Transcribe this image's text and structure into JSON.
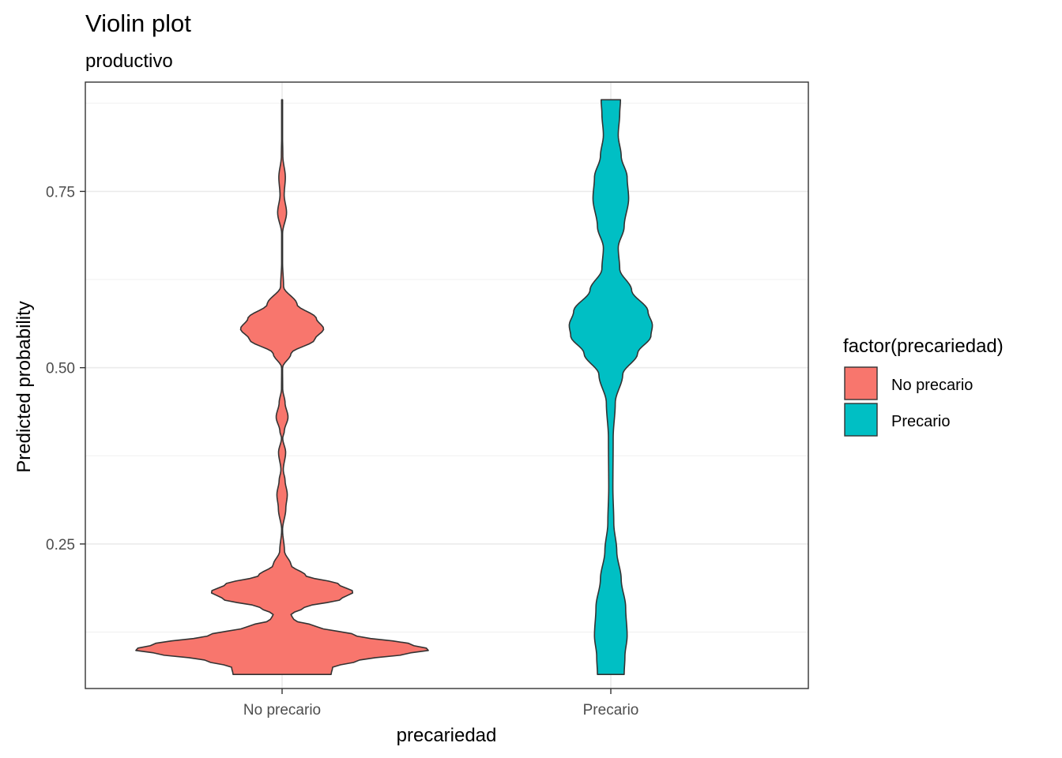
{
  "chart_data": {
    "type": "violin",
    "title": "Violin plot",
    "subtitle": "productivo",
    "xlabel": "precariedad",
    "ylabel": "Predicted probability",
    "categories": [
      "No precario",
      "Precario"
    ],
    "ylim": [
      0.045,
      0.905
    ],
    "yticks": [
      0.25,
      0.5,
      0.75
    ],
    "ytick_labels": [
      "0.25",
      "0.50",
      "0.75"
    ],
    "minor_yticks": [
      0.125,
      0.375,
      0.625,
      0.875
    ],
    "grid": true,
    "legend": {
      "title": "factor(precariedad)",
      "position": "right",
      "entries": [
        {
          "label": "No precario",
          "color": "#F8766D"
        },
        {
          "label": "Precario",
          "color": "#00BFC4"
        }
      ]
    },
    "series": [
      {
        "name": "No precario",
        "color": "#F8766D",
        "y_range": [
          0.065,
          0.88
        ],
        "density_profile": [
          {
            "y": 0.065,
            "w": 0.33
          },
          {
            "y": 0.075,
            "w": 0.34
          },
          {
            "y": 0.085,
            "w": 0.52
          },
          {
            "y": 0.095,
            "w": 0.86
          },
          {
            "y": 0.1,
            "w": 1.0
          },
          {
            "y": 0.108,
            "w": 0.86
          },
          {
            "y": 0.12,
            "w": 0.5
          },
          {
            "y": 0.133,
            "w": 0.23
          },
          {
            "y": 0.142,
            "w": 0.08
          },
          {
            "y": 0.15,
            "w": 0.06
          },
          {
            "y": 0.16,
            "w": 0.15
          },
          {
            "y": 0.172,
            "w": 0.4
          },
          {
            "y": 0.182,
            "w": 0.48
          },
          {
            "y": 0.193,
            "w": 0.38
          },
          {
            "y": 0.205,
            "w": 0.16
          },
          {
            "y": 0.22,
            "w": 0.06
          },
          {
            "y": 0.24,
            "w": 0.016
          },
          {
            "y": 0.27,
            "w": 0.003
          },
          {
            "y": 0.3,
            "w": 0.025
          },
          {
            "y": 0.32,
            "w": 0.035
          },
          {
            "y": 0.34,
            "w": 0.02
          },
          {
            "y": 0.355,
            "w": 0.008
          },
          {
            "y": 0.38,
            "w": 0.024
          },
          {
            "y": 0.4,
            "w": 0.004
          },
          {
            "y": 0.41,
            "w": 0.015
          },
          {
            "y": 0.43,
            "w": 0.04
          },
          {
            "y": 0.45,
            "w": 0.02
          },
          {
            "y": 0.47,
            "w": 0.004
          },
          {
            "y": 0.5,
            "w": 0.003
          },
          {
            "y": 0.52,
            "w": 0.06
          },
          {
            "y": 0.54,
            "w": 0.22
          },
          {
            "y": 0.555,
            "w": 0.28
          },
          {
            "y": 0.57,
            "w": 0.23
          },
          {
            "y": 0.59,
            "w": 0.1
          },
          {
            "y": 0.615,
            "w": 0.01
          },
          {
            "y": 0.65,
            "w": 0.003
          },
          {
            "y": 0.69,
            "w": 0.003
          },
          {
            "y": 0.72,
            "w": 0.03
          },
          {
            "y": 0.745,
            "w": 0.014
          },
          {
            "y": 0.77,
            "w": 0.022
          },
          {
            "y": 0.8,
            "w": 0.005
          },
          {
            "y": 0.84,
            "w": 0.002
          },
          {
            "y": 0.88,
            "w": 0.002
          }
        ]
      },
      {
        "name": "Precario",
        "color": "#00BFC4",
        "y_range": [
          0.065,
          0.88
        ],
        "density_profile": [
          {
            "y": 0.065,
            "w": 0.09
          },
          {
            "y": 0.09,
            "w": 0.095
          },
          {
            "y": 0.12,
            "w": 0.11
          },
          {
            "y": 0.16,
            "w": 0.1
          },
          {
            "y": 0.2,
            "w": 0.07
          },
          {
            "y": 0.24,
            "w": 0.04
          },
          {
            "y": 0.28,
            "w": 0.02
          },
          {
            "y": 0.33,
            "w": 0.014
          },
          {
            "y": 0.4,
            "w": 0.016
          },
          {
            "y": 0.45,
            "w": 0.03
          },
          {
            "y": 0.49,
            "w": 0.08
          },
          {
            "y": 0.52,
            "w": 0.18
          },
          {
            "y": 0.545,
            "w": 0.27
          },
          {
            "y": 0.56,
            "w": 0.28
          },
          {
            "y": 0.58,
            "w": 0.25
          },
          {
            "y": 0.61,
            "w": 0.14
          },
          {
            "y": 0.64,
            "w": 0.06
          },
          {
            "y": 0.67,
            "w": 0.05
          },
          {
            "y": 0.7,
            "w": 0.09
          },
          {
            "y": 0.74,
            "w": 0.12
          },
          {
            "y": 0.77,
            "w": 0.11
          },
          {
            "y": 0.8,
            "w": 0.07
          },
          {
            "y": 0.83,
            "w": 0.05
          },
          {
            "y": 0.86,
            "w": 0.06
          },
          {
            "y": 0.88,
            "w": 0.065
          }
        ]
      }
    ]
  }
}
